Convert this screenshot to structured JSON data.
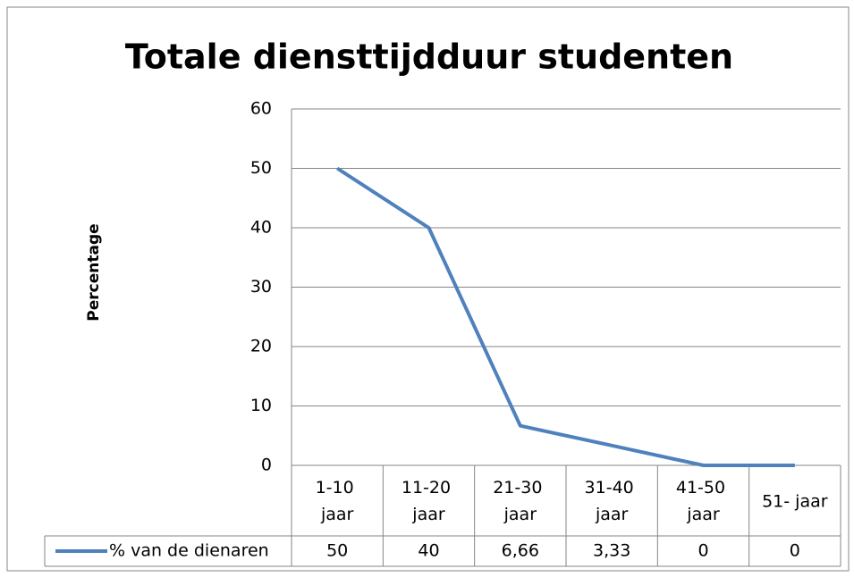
{
  "chart_data": {
    "type": "line",
    "title": "Totale diensttijdduur studenten",
    "y_label": "Percentage",
    "categories": [
      "1-10 jaar",
      "11-20 jaar",
      "21-30 jaar",
      "31-40 jaar",
      "41-50 jaar",
      "51- jaar"
    ],
    "series": [
      {
        "name": "% van de dienaren",
        "color": "#4f81bd",
        "values": [
          50,
          40,
          6.66,
          3.33,
          0,
          0
        ],
        "value_labels": [
          "50",
          "40",
          "6,66",
          "3,33",
          "0",
          "0"
        ]
      }
    ],
    "ylim": [
      0,
      60
    ],
    "yticks": [
      0,
      10,
      20,
      30,
      40,
      50,
      60
    ],
    "grid": true,
    "data_table": true
  }
}
